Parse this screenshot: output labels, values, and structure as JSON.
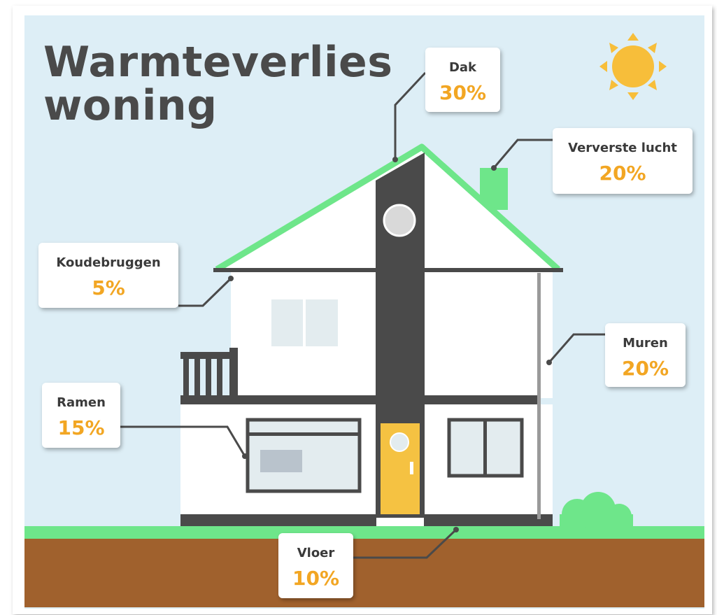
{
  "title": "Warmteverlies woning",
  "callouts": [
    {
      "label": "Dak",
      "value": "30%"
    },
    {
      "label": "Ververste lucht",
      "value": "20%"
    },
    {
      "label": "Koudebruggen",
      "value": "5%"
    },
    {
      "label": "Muren",
      "value": "20%"
    },
    {
      "label": "Ramen",
      "value": "15%"
    },
    {
      "label": "Vloer",
      "value": "10%"
    }
  ]
}
